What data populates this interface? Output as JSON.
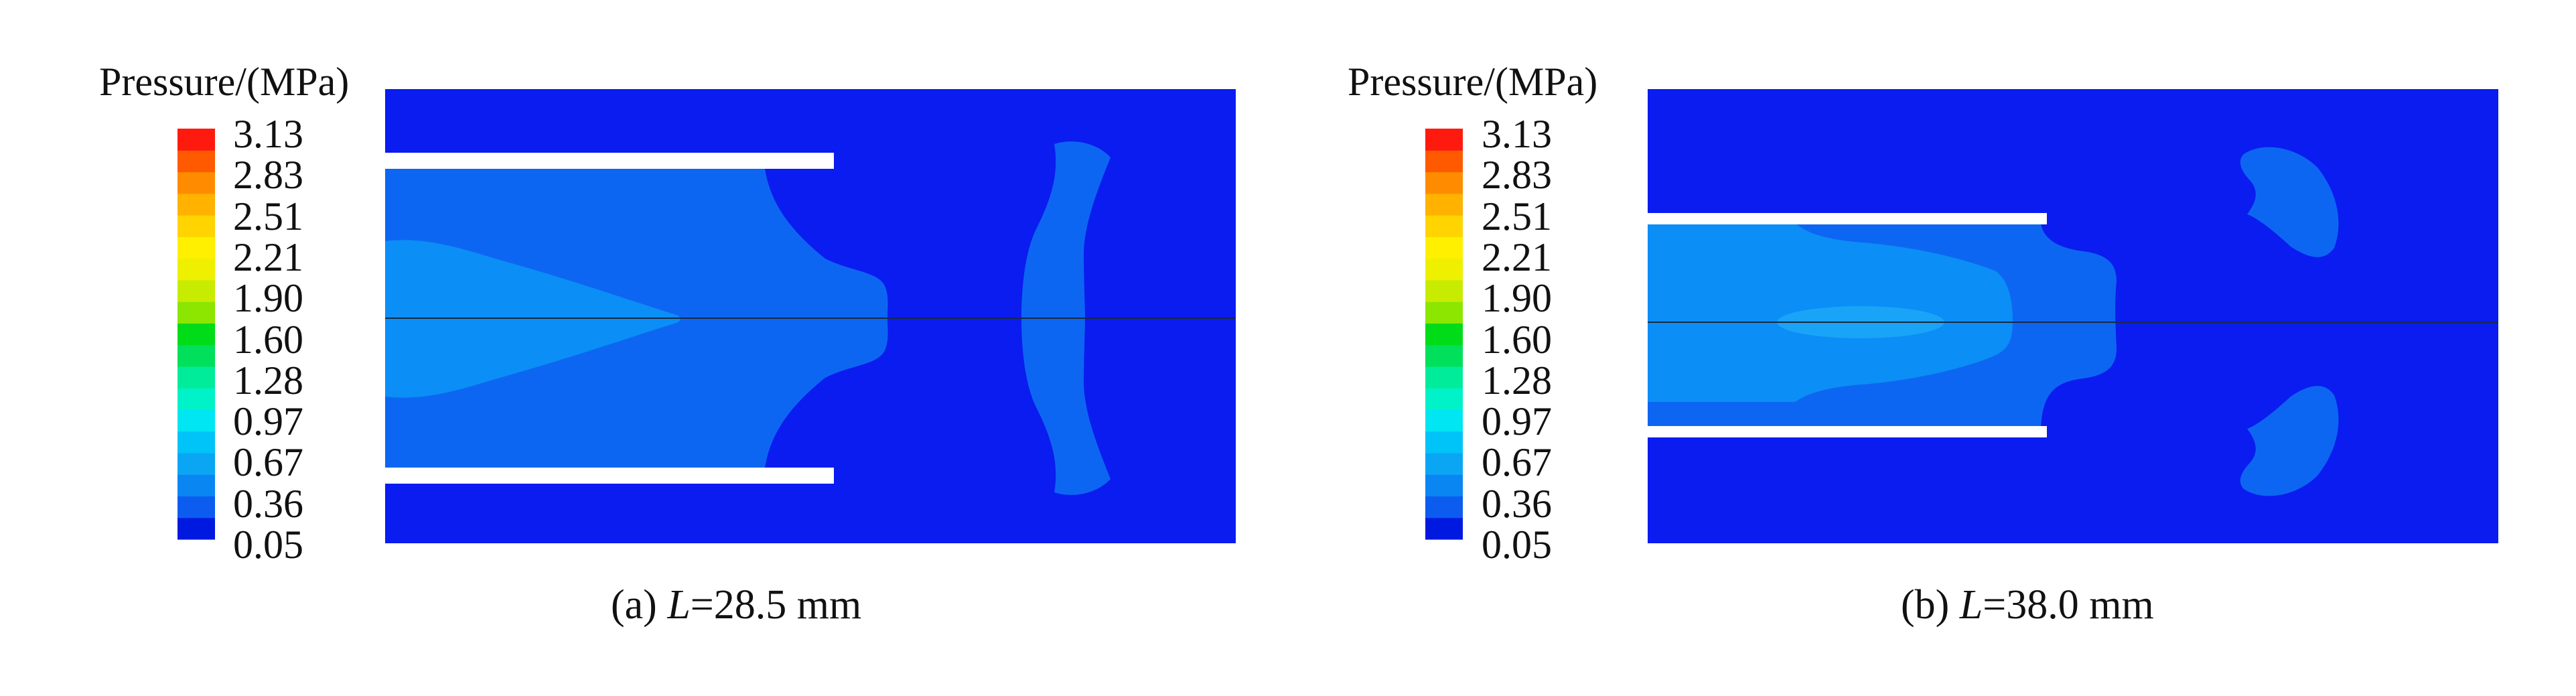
{
  "colors": {
    "pressure_bands": [
      "#0019e0",
      "#0c5cf0",
      "#0a86f2",
      "#0aa6f4",
      "#00c4f8",
      "#00e6f2",
      "#00f2c8",
      "#00ec9a",
      "#00e05a",
      "#00dc18",
      "#8ce600",
      "#c8ec00",
      "#eef000",
      "#fff000",
      "#ffd400",
      "#ffb200",
      "#ff8c00",
      "#ff5a00",
      "#ff1a10"
    ],
    "field_background": "#0a1cf0",
    "field_level2": "#0d66f2",
    "field_level3": "#0b8ef6",
    "field_level4": "#19a4f8",
    "centerline": "#1a2a40",
    "tube": "#ffffff"
  },
  "chart_data": [
    {
      "type": "heatmap",
      "legend_title": "Pressure/(MPa)",
      "colorbar_ticks": [
        "3.13",
        "2.83",
        "2.51",
        "2.21",
        "1.90",
        "1.60",
        "1.28",
        "0.97",
        "0.67",
        "0.36",
        "0.05"
      ],
      "caption_prefix": "(a) ",
      "caption_var": "L",
      "caption_value": "=28.5 mm"
    },
    {
      "type": "heatmap",
      "legend_title": "Pressure/(MPa)",
      "colorbar_ticks": [
        "3.13",
        "2.83",
        "2.51",
        "2.21",
        "1.90",
        "1.60",
        "1.28",
        "0.97",
        "0.67",
        "0.36",
        "0.05"
      ],
      "caption_prefix": "(b) ",
      "caption_var": "L",
      "caption_value": "=38.0 mm"
    }
  ]
}
